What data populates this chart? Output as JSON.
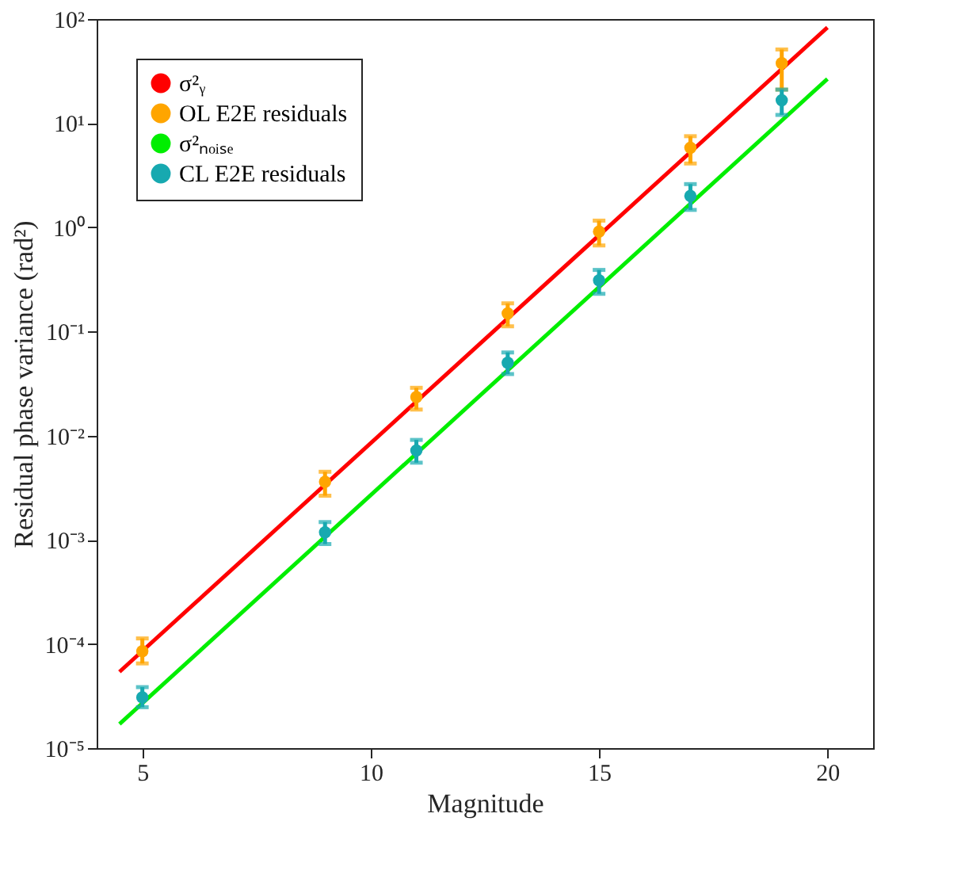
{
  "chart_data": {
    "type": "line",
    "xlabel": "Magnitude",
    "ylabel": "Residual phase variance (rad²)",
    "series": [
      {
        "name": "σ²ᵧ",
        "marker": "none",
        "color": "#ff0000",
        "x": [
          4.5,
          20
        ],
        "values": [
          5.4e-05,
          83
        ]
      },
      {
        "name": "OL E2E residuals",
        "type": "scatter",
        "color": "#ffa500",
        "x": [
          5,
          9,
          11,
          13,
          15,
          17,
          19
        ],
        "values": [
          8.5e-05,
          0.0036,
          0.0235,
          0.149,
          0.91,
          5.8,
          37.7
        ],
        "errors": [
          [
            6.5e-05,
            0.000113
          ],
          [
            0.00265,
            0.0045
          ],
          [
            0.0178,
            0.0288
          ],
          [
            0.112,
            0.186
          ],
          [
            0.67,
            1.16
          ],
          [
            4.1,
            7.5
          ],
          [
            21,
            51
          ]
        ]
      },
      {
        "name": "σ²ₙₒᵢₛₑ",
        "marker": "none",
        "color": "#00ee00",
        "x": [
          4.5,
          20
        ],
        "values": [
          1.7e-05,
          26.6
        ]
      },
      {
        "name": "CL E2E residuals",
        "type": "scatter",
        "color": "#17a9b0",
        "x": [
          5,
          9,
          11,
          13,
          15,
          17,
          19
        ],
        "values": [
          3.07e-05,
          0.00118,
          0.0072,
          0.05,
          0.31,
          2.0,
          16.6
        ],
        "errors": [
          [
            2.47e-05,
            3.85e-05
          ],
          [
            0.00091,
            0.00148
          ],
          [
            0.0055,
            0.0091
          ],
          [
            0.039,
            0.063
          ],
          [
            0.23,
            0.39
          ],
          [
            1.47,
            2.6
          ],
          [
            12,
            21
          ]
        ]
      }
    ],
    "log": "y",
    "xlim": [
      4,
      21
    ],
    "xticks": [
      5,
      10,
      15,
      20
    ],
    "ylim": [
      1e-05,
      100
    ],
    "yticks": [
      {
        "value": 1e-05,
        "label": "10⁻⁵"
      },
      {
        "value": 0.0001,
        "label": "10⁻⁴"
      },
      {
        "value": 0.001,
        "label": "10⁻³"
      },
      {
        "value": 0.01,
        "label": "10⁻²"
      },
      {
        "value": 0.1,
        "label": "10⁻¹"
      },
      {
        "value": 1,
        "label": "10⁰"
      },
      {
        "value": 10,
        "label": "10¹"
      },
      {
        "value": 100,
        "label": "10²"
      }
    ],
    "grid": false,
    "legend": "top left",
    "marker": "circle",
    "line_style": "solid"
  }
}
